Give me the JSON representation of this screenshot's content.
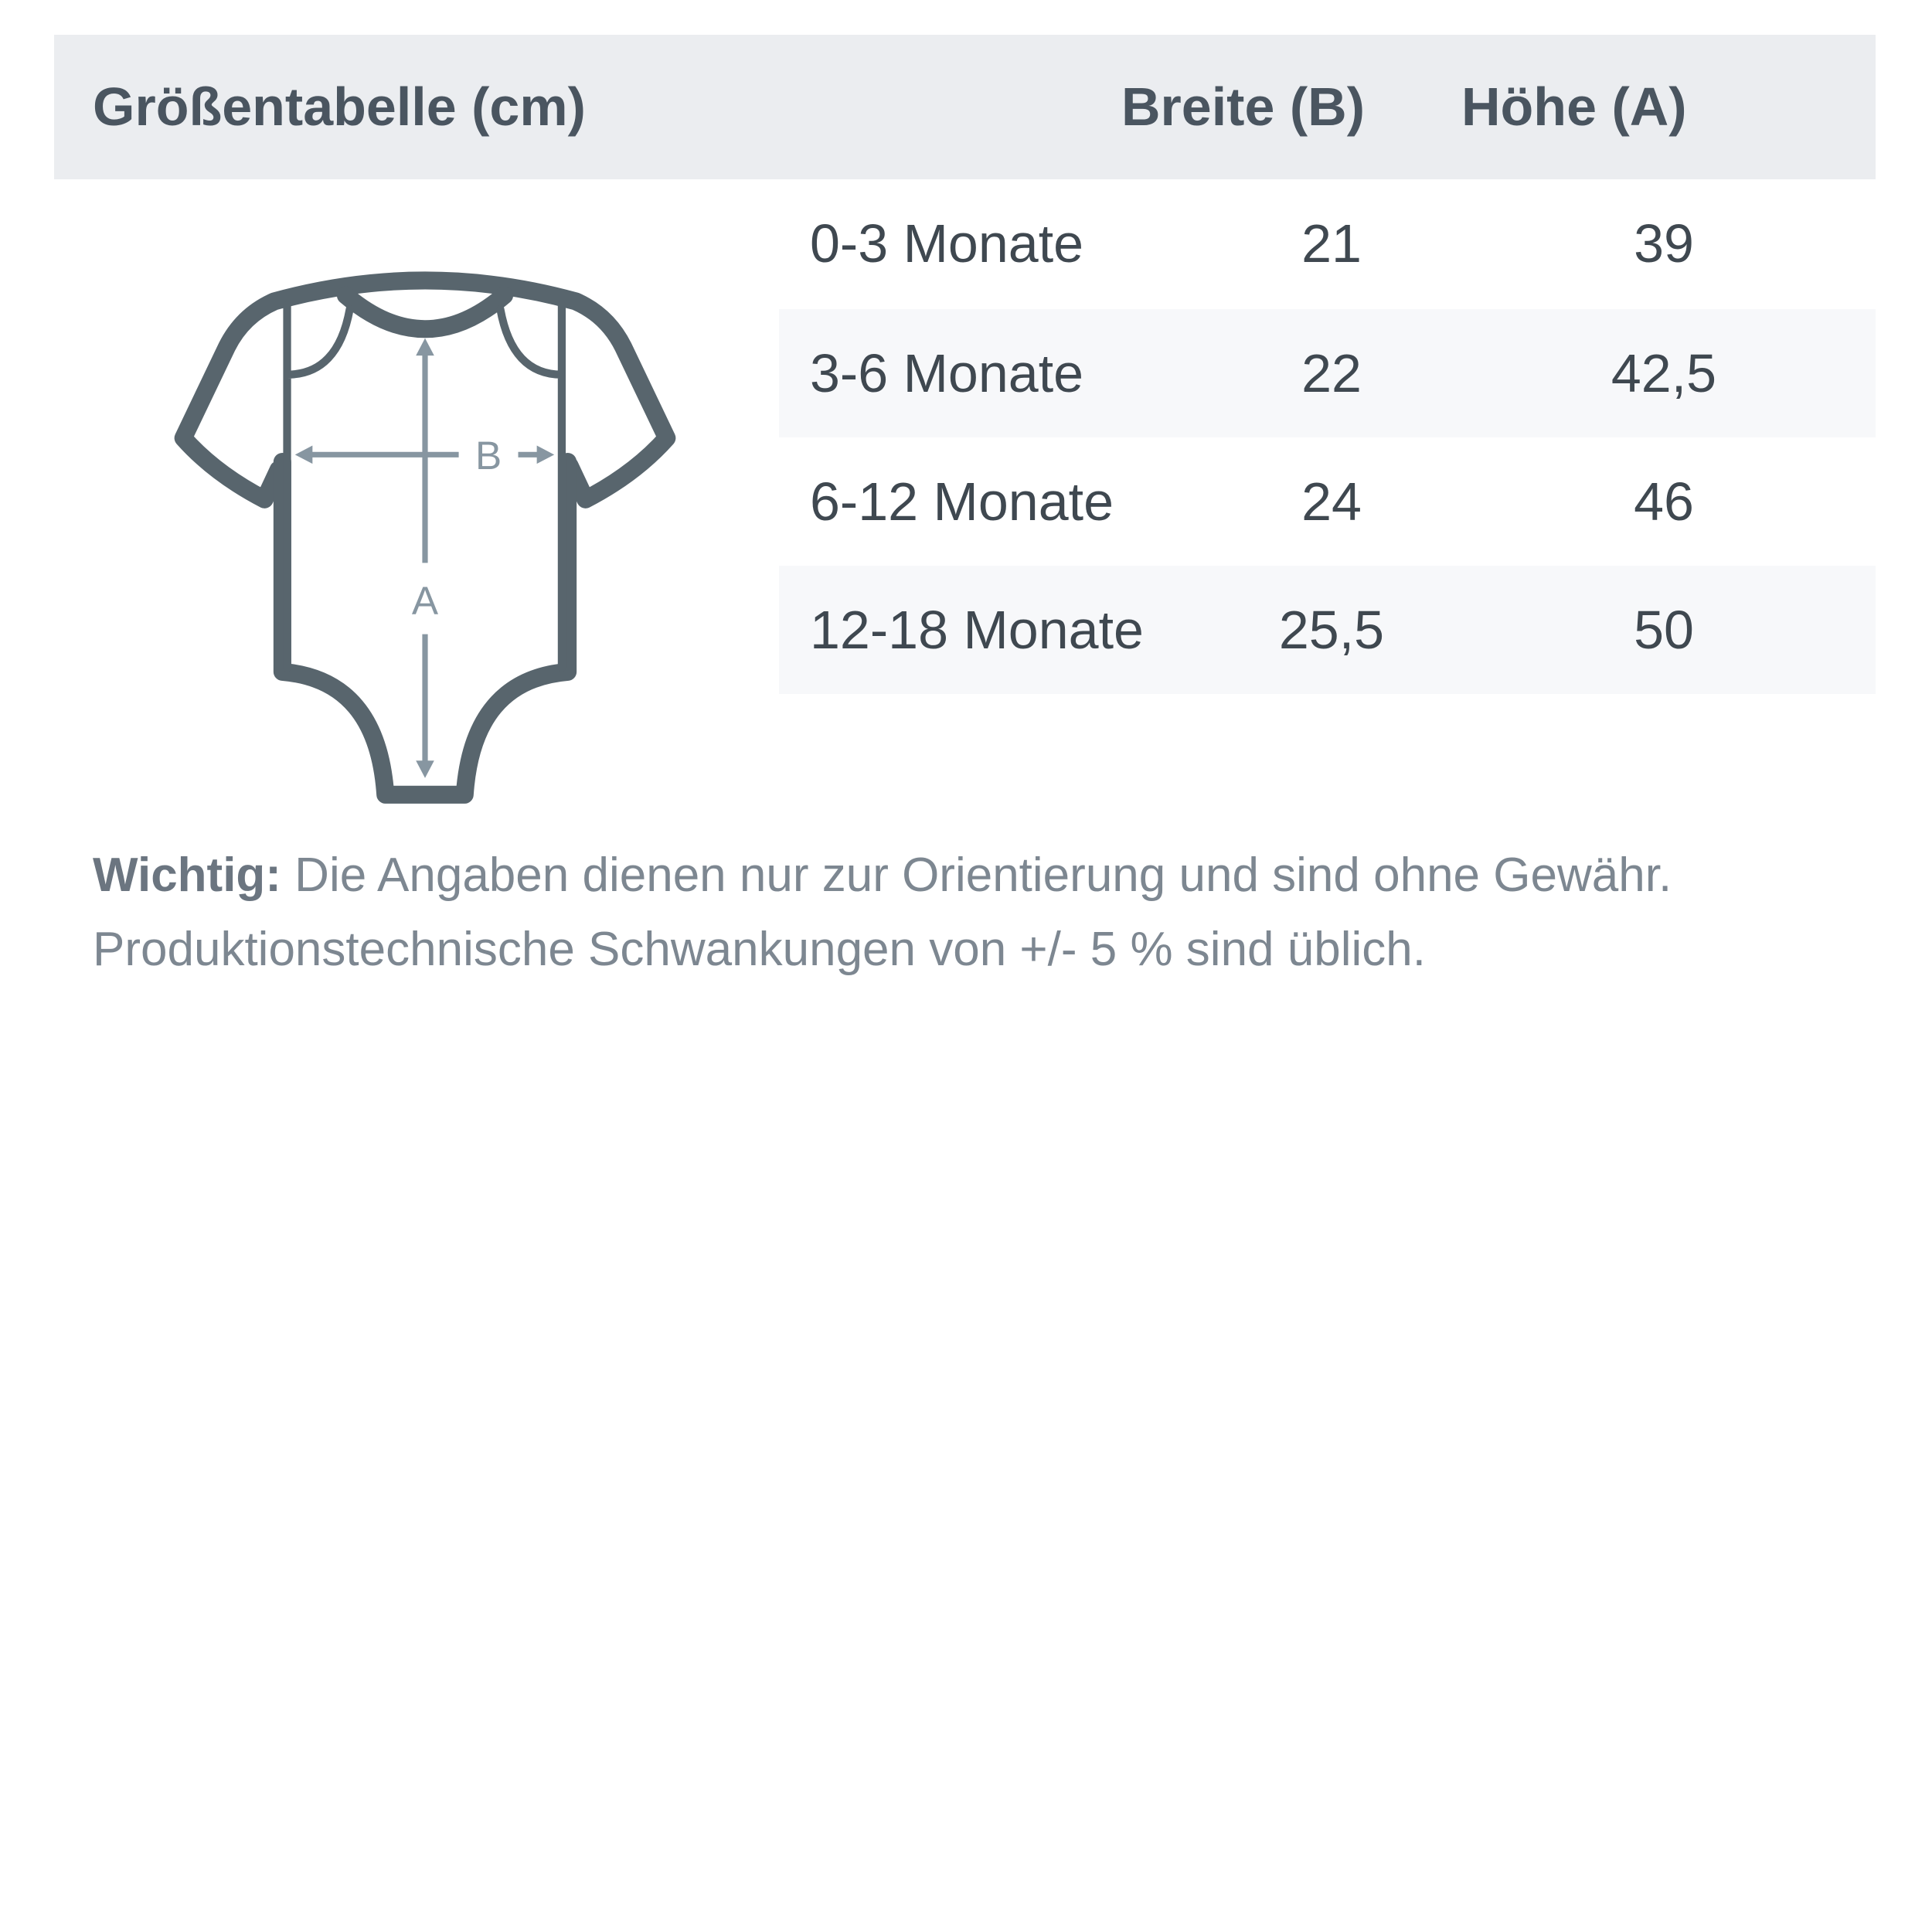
{
  "header": {
    "title": "Größentabelle (cm)",
    "col_width": "Breite (B)",
    "col_height": "Höhe (A)"
  },
  "rows": [
    {
      "size": "0-3 Monate",
      "width": "21",
      "height": "39"
    },
    {
      "size": "3-6 Monate",
      "width": "22",
      "height": "42,5"
    },
    {
      "size": "6-12 Monate",
      "width": "24",
      "height": "46"
    },
    {
      "size": "12-18 Monate",
      "width": "25,5",
      "height": "50"
    }
  ],
  "diagram": {
    "label_width": "B",
    "label_height": "A",
    "outline_color": "#58656d",
    "arrow_color": "#8796a1"
  },
  "note": {
    "label": "Wichtig:",
    "line1": " Die Angaben dienen nur zur Orientierung und sind ohne Gewähr.",
    "line2": "Produktionstechnische Schwankungen von +/- 5 % sind üblich."
  }
}
